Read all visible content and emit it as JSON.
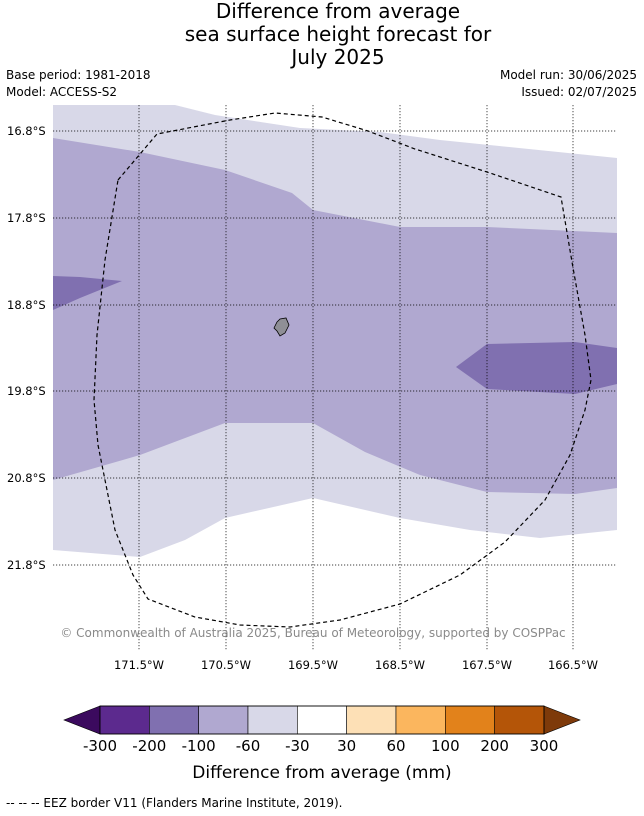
{
  "title": {
    "line1": "Difference from average",
    "line2": "sea surface height forecast for",
    "line3": "July 2025"
  },
  "meta": {
    "base_period": "Base period: 1981-2018",
    "model": "Model: ACCESS-S2",
    "model_run": "Model run: 30/06/2025",
    "issued": "Issued: 02/07/2025"
  },
  "map": {
    "lat_labels": [
      "16.8°S",
      "17.8°S",
      "18.8°S",
      "19.8°S",
      "20.8°S",
      "21.8°S"
    ],
    "lon_labels": [
      "171.5°W",
      "170.5°W",
      "169.5°W",
      "168.5°W",
      "167.5°W",
      "166.5°W"
    ],
    "credit": "© Commonwealth of Australia 2025, Bureau of Meteorology, supported by COSPPac"
  },
  "legend": {
    "tick_labels": [
      "-300",
      "-200",
      "-100",
      "-60",
      "-30",
      "30",
      "60",
      "100",
      "200",
      "300"
    ],
    "colors": [
      "#3b0a5e",
      "#5c2a8e",
      "#8070b0",
      "#b0a8d0",
      "#d8d8e8",
      "#ffffff",
      "#fde0b6",
      "#fbb65e",
      "#e2821b",
      "#b45508",
      "#7e3a0a"
    ],
    "title": "Difference from average (mm)"
  },
  "footnote": "--  --  -- EEZ border V11 (Flanders Marine Institute, 2019)."
}
